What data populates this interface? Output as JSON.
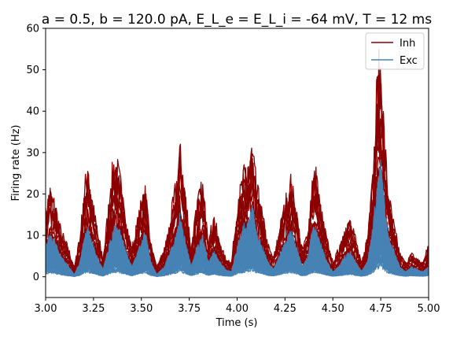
{
  "chart_data": {
    "type": "line",
    "title": "a = 0.5, b = 120.0 pA, E_L_e = E_L_i = -64 mV, T = 12 ms",
    "xlabel": "Time (s)",
    "ylabel": "Firing rate (Hz)",
    "xlim": [
      3.0,
      5.0
    ],
    "ylim": [
      -5,
      60
    ],
    "x_ticks": [
      "3.00",
      "3.25",
      "3.50",
      "3.75",
      "4.00",
      "4.25",
      "4.50",
      "4.75",
      "5.00"
    ],
    "y_ticks": [
      "0",
      "10",
      "20",
      "30",
      "40",
      "50",
      "60"
    ],
    "grid": false,
    "legend_position": "top-right",
    "series": [
      {
        "name": "Inh",
        "color": "#8b0000",
        "x": [
          3.0,
          3.02,
          3.05,
          3.08,
          3.12,
          3.15,
          3.18,
          3.2,
          3.22,
          3.25,
          3.28,
          3.3,
          3.33,
          3.36,
          3.39,
          3.42,
          3.45,
          3.49,
          3.52,
          3.55,
          3.58,
          3.62,
          3.65,
          3.68,
          3.7,
          3.73,
          3.76,
          3.79,
          3.82,
          3.85,
          3.88,
          3.91,
          3.94,
          3.97,
          4.0,
          4.03,
          4.06,
          4.08,
          4.1,
          4.13,
          4.16,
          4.19,
          4.22,
          4.25,
          4.28,
          4.31,
          4.34,
          4.37,
          4.39,
          4.41,
          4.44,
          4.47,
          4.5,
          4.53,
          4.56,
          4.59,
          4.62,
          4.65,
          4.68,
          4.71,
          4.73,
          4.75,
          4.77,
          4.79,
          4.82,
          4.85,
          4.88,
          4.91,
          4.94,
          4.97,
          5.0
        ],
        "values": [
          14,
          19,
          16,
          10,
          6,
          2,
          9,
          18,
          25,
          15,
          8,
          4,
          16,
          27,
          21,
          12,
          6,
          14,
          20,
          7,
          2,
          6,
          12,
          20,
          28,
          18,
          6,
          16,
          20,
          8,
          13,
          7,
          4,
          3,
          15,
          22,
          24,
          28,
          20,
          14,
          7,
          4,
          10,
          16,
          21,
          14,
          6,
          10,
          21,
          23,
          14,
          8,
          3,
          6,
          10,
          12,
          8,
          3,
          9,
          22,
          42,
          48,
          30,
          18,
          11,
          5,
          3,
          5,
          4,
          3,
          7
        ]
      },
      {
        "name": "Exc",
        "color": "#4682b4",
        "x": [
          3.0,
          3.02,
          3.05,
          3.08,
          3.12,
          3.15,
          3.18,
          3.2,
          3.22,
          3.25,
          3.28,
          3.3,
          3.33,
          3.36,
          3.39,
          3.42,
          3.45,
          3.49,
          3.52,
          3.55,
          3.58,
          3.62,
          3.65,
          3.68,
          3.7,
          3.73,
          3.76,
          3.79,
          3.82,
          3.85,
          3.88,
          3.91,
          3.94,
          3.97,
          4.0,
          4.03,
          4.06,
          4.08,
          4.1,
          4.13,
          4.16,
          4.19,
          4.22,
          4.25,
          4.28,
          4.31,
          4.34,
          4.37,
          4.39,
          4.41,
          4.44,
          4.47,
          4.5,
          4.53,
          4.56,
          4.59,
          4.62,
          4.65,
          4.68,
          4.71,
          4.73,
          4.75,
          4.77,
          4.79,
          4.82,
          4.85,
          4.88,
          4.91,
          4.94,
          4.97,
          5.0
        ],
        "values": [
          6,
          8,
          7,
          4,
          2,
          0.5,
          3,
          8,
          10,
          6,
          3,
          1.5,
          6,
          10,
          9,
          5,
          2,
          6,
          9,
          3,
          0.5,
          2,
          5,
          8,
          12,
          7,
          2,
          6,
          8,
          3,
          5,
          3,
          1.5,
          1,
          6,
          10,
          11,
          14,
          9,
          6,
          3,
          1.5,
          4,
          7,
          9,
          6,
          2,
          4,
          9,
          10,
          6,
          3,
          1,
          2,
          4,
          5,
          3,
          1,
          3,
          10,
          18,
          23,
          14,
          8,
          5,
          2,
          1,
          2,
          1.5,
          1,
          2
        ]
      }
    ]
  }
}
